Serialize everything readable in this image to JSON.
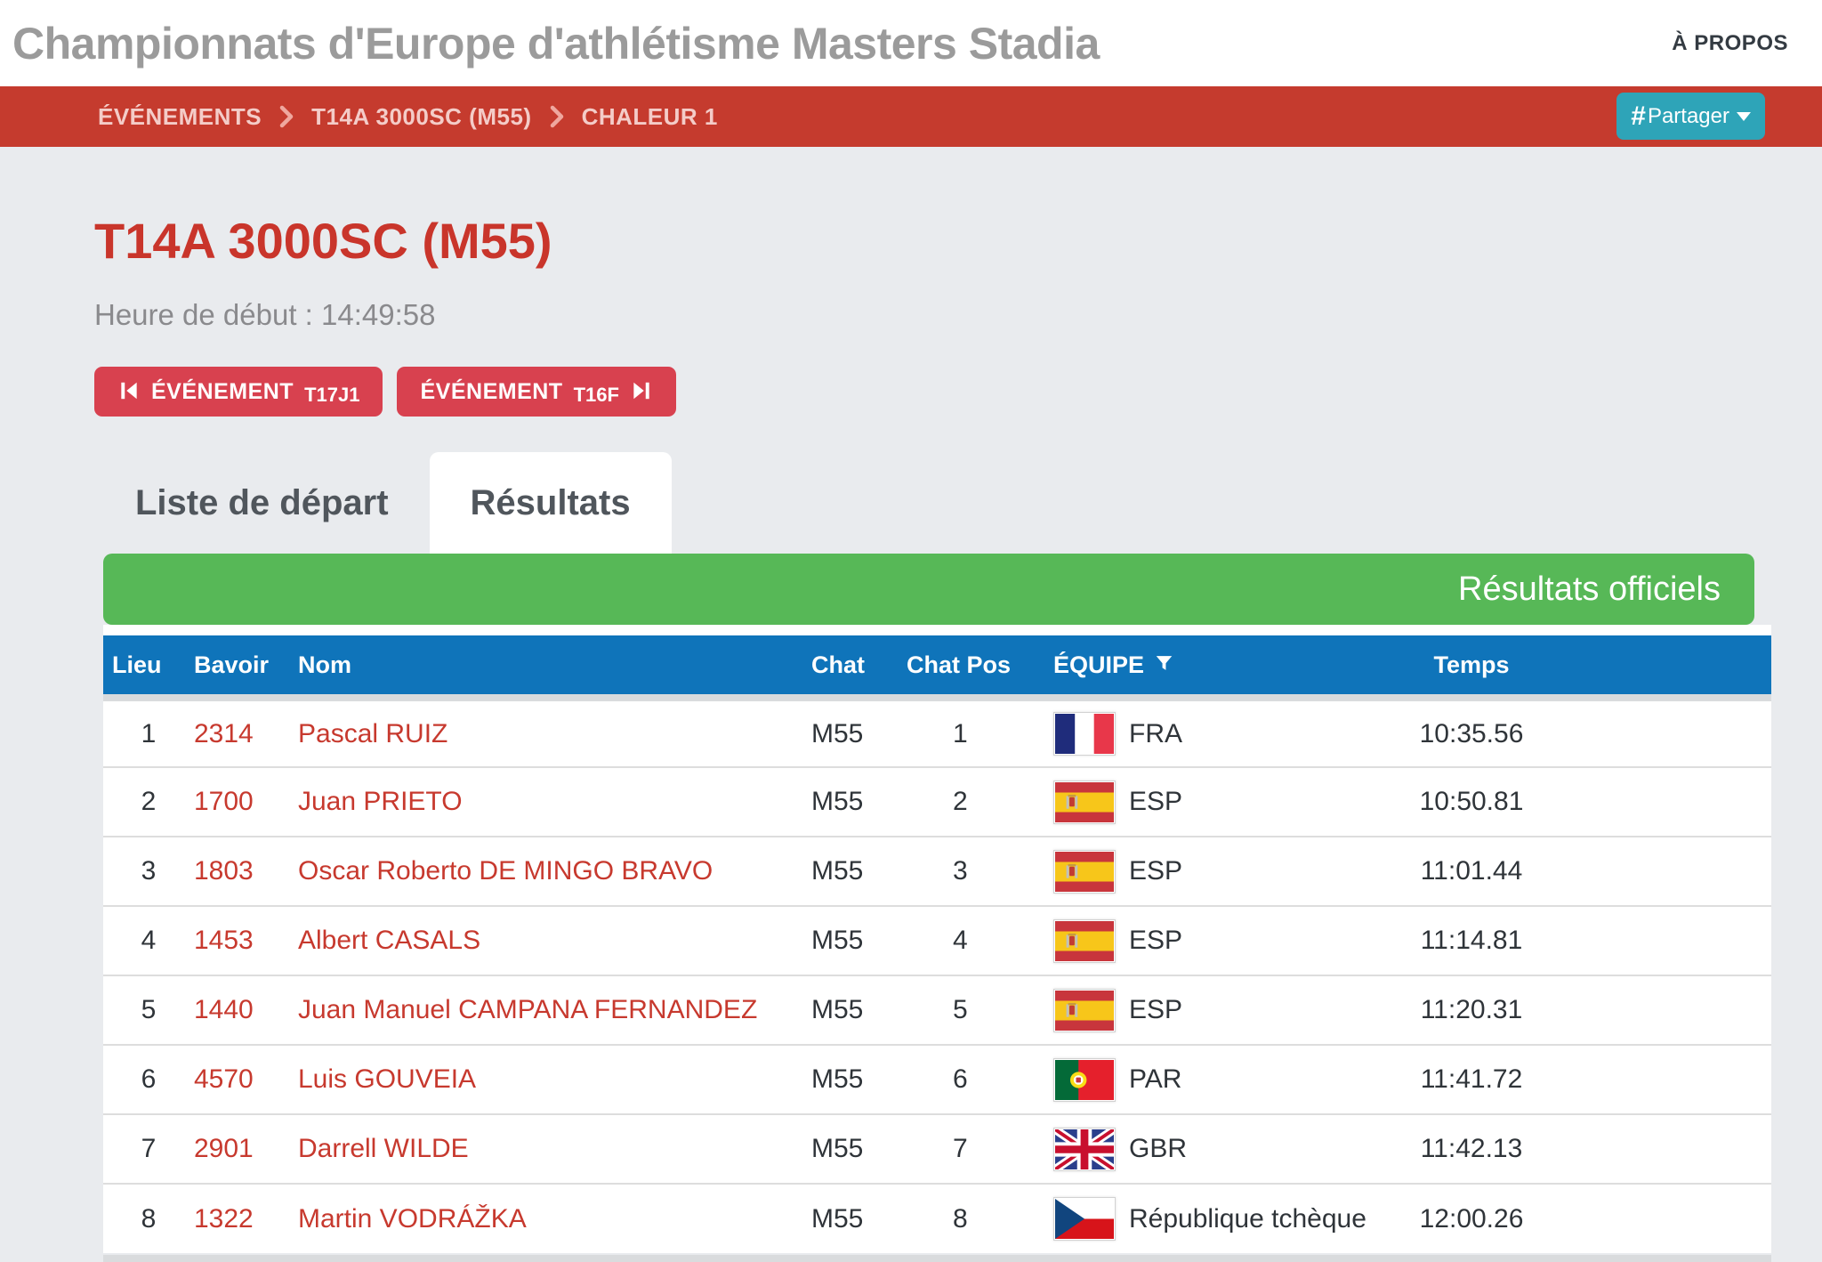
{
  "header": {
    "site_title": "Championnats d'Europe d'athlétisme Masters Stadia",
    "about_label": "À PROPOS"
  },
  "breadcrumb": {
    "items": [
      "ÉVÉNEMENTS",
      "T14A 3000SC (M55)",
      "CHALEUR 1"
    ],
    "share_hash": "#",
    "share_label": "Partager"
  },
  "event": {
    "title": "T14A 3000SC (M55)",
    "start_time_label": "Heure de début : 14:49:58",
    "prev_button": {
      "label": "ÉVÉNEMENT",
      "code": "T17J1"
    },
    "next_button": {
      "label": "ÉVÉNEMENT",
      "code": "T16F"
    }
  },
  "tabs": [
    {
      "label": "Liste de départ",
      "active": false
    },
    {
      "label": "Résultats",
      "active": true
    }
  ],
  "results": {
    "banner": "Résultats officiels",
    "columns": [
      "Lieu",
      "Bavoir",
      "Nom",
      "Chat",
      "Chat Pos",
      "ÉQUIPE",
      "Temps"
    ],
    "rows": [
      {
        "place": "1",
        "bib": "2314",
        "name": "Pascal RUIZ",
        "cat": "M55",
        "cat_pos": "1",
        "flag": "fra",
        "team": "FRA",
        "time": "10:35.56"
      },
      {
        "place": "2",
        "bib": "1700",
        "name": "Juan PRIETO",
        "cat": "M55",
        "cat_pos": "2",
        "flag": "esp",
        "team": "ESP",
        "time": "10:50.81"
      },
      {
        "place": "3",
        "bib": "1803",
        "name": "Oscar Roberto DE MINGO BRAVO",
        "cat": "M55",
        "cat_pos": "3",
        "flag": "esp",
        "team": "ESP",
        "time": "11:01.44"
      },
      {
        "place": "4",
        "bib": "1453",
        "name": "Albert CASALS",
        "cat": "M55",
        "cat_pos": "4",
        "flag": "esp",
        "team": "ESP",
        "time": "11:14.81"
      },
      {
        "place": "5",
        "bib": "1440",
        "name": "Juan Manuel CAMPANA FERNANDEZ",
        "cat": "M55",
        "cat_pos": "5",
        "flag": "esp",
        "team": "ESP",
        "time": "11:20.31"
      },
      {
        "place": "6",
        "bib": "4570",
        "name": "Luis GOUVEIA",
        "cat": "M55",
        "cat_pos": "6",
        "flag": "por",
        "team": "PAR",
        "time": "11:41.72"
      },
      {
        "place": "7",
        "bib": "2901",
        "name": "Darrell WILDE",
        "cat": "M55",
        "cat_pos": "7",
        "flag": "gbr",
        "team": "GBR",
        "time": "11:42.13"
      },
      {
        "place": "8",
        "bib": "1322",
        "name": "Martin VODRÁŽKA",
        "cat": "M55",
        "cat_pos": "8",
        "flag": "cze",
        "team": "République tchèque",
        "time": "12:00.26"
      }
    ]
  },
  "colors": {
    "breadcrumb_bar": "#C53B2E",
    "accent_red_button": "#D8414F",
    "title_red": "#C9352B",
    "banner_green": "#57B857",
    "table_header_blue": "#0F74BA",
    "share_teal": "#2EA4B8",
    "link_red": "#C7392E",
    "page_background": "#E9EBEE"
  }
}
